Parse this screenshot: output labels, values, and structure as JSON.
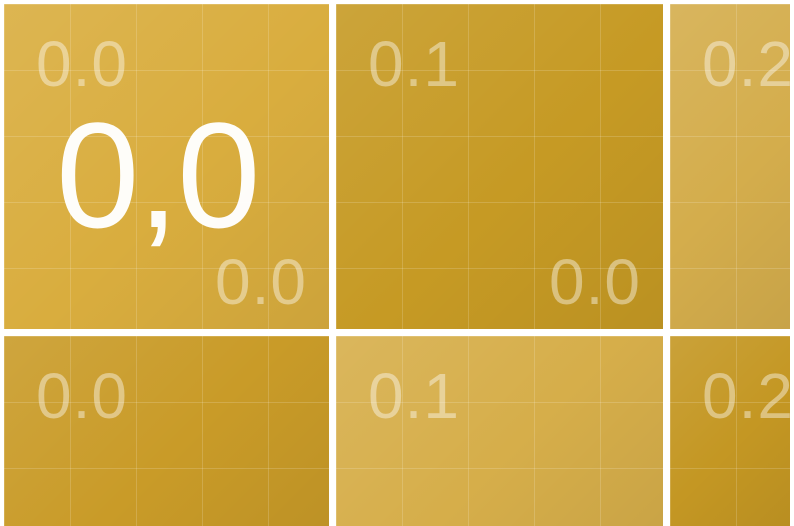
{
  "colors": {
    "background": "#ffffff",
    "tile_gold": "#d6a93a",
    "tile_dark": "#c89a26",
    "tile_light": "#dcb350",
    "grid_line": "rgba(255,255,255,0.16)",
    "label": "rgba(255,255,255,0.42)",
    "big_label": "#ffffff"
  },
  "tiles": {
    "r0c0": {
      "top_label": "0.0",
      "bottom_label": "0.0",
      "big_label": "0,0",
      "color": "#d9ad3e"
    },
    "r0c1": {
      "top_label": "0.1",
      "bottom_label": "0.0",
      "color": "#c69a24"
    },
    "r0c2": {
      "top_label": "0.2",
      "color": "#d4ad4c"
    },
    "r1c0": {
      "top_label": "0.0",
      "color": "#c99b28"
    },
    "r1c1": {
      "top_label": "0.1",
      "color": "#d6ae4a"
    },
    "r1c2": {
      "top_label": "0.2",
      "color": "#c49723"
    }
  }
}
